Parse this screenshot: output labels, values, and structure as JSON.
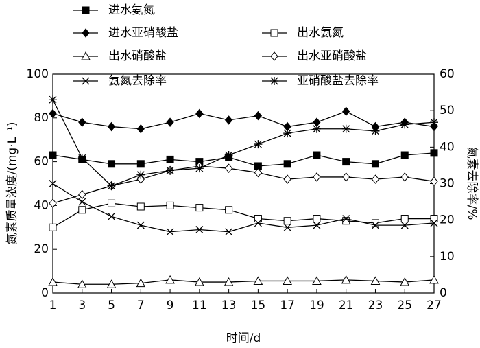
{
  "chart_data": {
    "type": "line",
    "x_label": "时间/d",
    "y_label": "氮素质量浓度/(mg·L⁻¹)",
    "y2_label": "氮素去除率/%",
    "x": [
      1,
      3,
      5,
      7,
      9,
      11,
      13,
      15,
      17,
      19,
      21,
      23,
      25,
      27
    ],
    "xlim": [
      1,
      27
    ],
    "xticks": [
      1,
      3,
      5,
      7,
      9,
      11,
      13,
      15,
      17,
      19,
      21,
      23,
      25,
      27
    ],
    "ylim": [
      0,
      100
    ],
    "yticks": [
      0,
      20,
      40,
      60,
      80,
      100
    ],
    "y2lim": [
      0,
      60
    ],
    "y2ticks": [
      0,
      10,
      20,
      30,
      40,
      50,
      60
    ],
    "series": [
      {
        "name": "进水氨氮",
        "color": "#000000",
        "marker": "square-filled",
        "values": [
          63,
          61,
          59,
          59,
          61,
          60,
          62,
          58,
          59,
          63,
          60,
          59,
          63,
          64
        ]
      },
      {
        "name": "进水亚硝酸盐",
        "color": "#000000",
        "marker": "diamond-filled",
        "values": [
          82,
          78,
          76,
          75,
          78,
          82,
          79,
          81,
          76,
          78,
          83,
          76,
          78,
          76
        ]
      },
      {
        "name": "出水氨氮",
        "color": "#000000",
        "marker": "square-open",
        "values": [
          30,
          38,
          41,
          39.5,
          40,
          39,
          38,
          34,
          33,
          34,
          33,
          32,
          34,
          34
        ]
      },
      {
        "name": "出水硝酸盐",
        "color": "#000000",
        "marker": "triangle-open",
        "values": [
          5,
          4,
          4,
          4.5,
          6,
          5,
          5,
          5.5,
          5.5,
          5.5,
          6,
          5.5,
          5,
          6
        ]
      },
      {
        "name": "出水亚硝酸盐",
        "color": "#000000",
        "marker": "diamond-open",
        "values": [
          41,
          45,
          49,
          52,
          56,
          58,
          57,
          55,
          52,
          53,
          53,
          52,
          53,
          51
        ]
      },
      {
        "name": "氨氮去除率",
        "color": "#000000",
        "marker": "x",
        "axis": "y2",
        "values": [
          30,
          25,
          21,
          18.6,
          16.8,
          17.4,
          16.8,
          19.2,
          18,
          18.6,
          20.4,
          18.6,
          18.6,
          19.2
        ]
      },
      {
        "name": "亚硝酸盐去除率",
        "color": "#000000",
        "marker": "star",
        "axis": "y2",
        "values": [
          53,
          37,
          29.4,
          32.4,
          33.6,
          34.2,
          37.8,
          40.8,
          43.8,
          45,
          45,
          44.4,
          46.2,
          46.8
        ]
      }
    ]
  }
}
